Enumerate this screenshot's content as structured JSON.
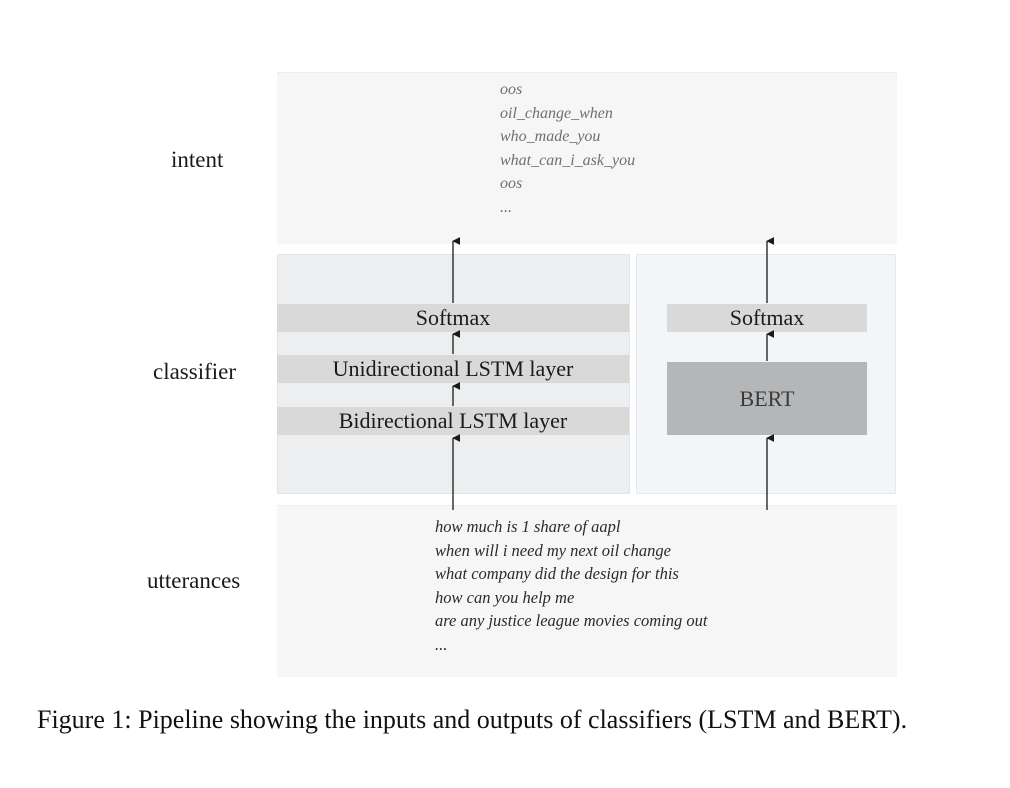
{
  "rows": {
    "intent_label": "intent",
    "classifier_label": "classifier",
    "utterances_label": "utterances"
  },
  "intent_examples": [
    "oos",
    "oil_change_when",
    "who_made_you",
    "what_can_i_ask_you",
    "oos",
    "..."
  ],
  "lstm": {
    "softmax": "Softmax",
    "unidirectional": "Unidirectional LSTM layer",
    "bidirectional": "Bidirectional LSTM layer"
  },
  "bert": {
    "softmax": "Softmax",
    "model": "BERT"
  },
  "utterance_examples": [
    "how much is 1 share of aapl",
    "when will i need my next oil change",
    "what company did the design for this",
    "how can you help me",
    "are any justice league movies coming out",
    "..."
  ],
  "caption": "Figure 1: Pipeline showing the inputs and outputs of classifiers (LSTM and BERT)."
}
